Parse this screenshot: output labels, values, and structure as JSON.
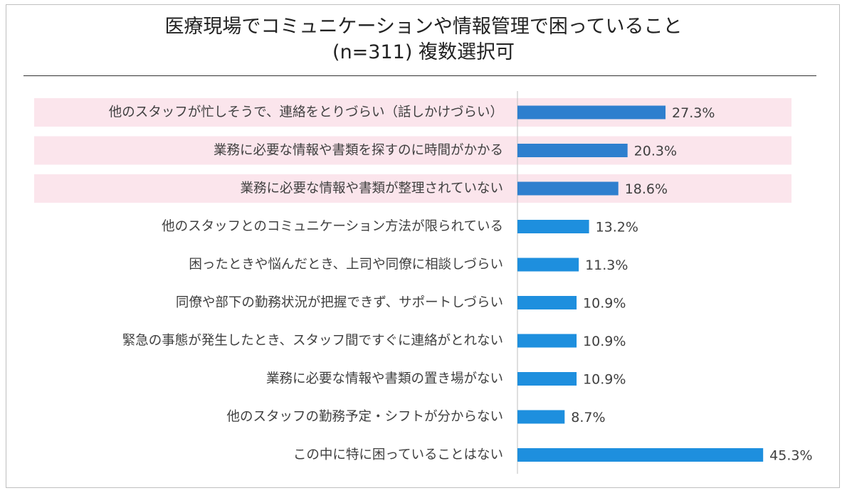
{
  "title": {
    "line1": "医療現場でコミュニケーションや情報管理で困っていること",
    "line2": "(n=311) 複数選択可"
  },
  "colors": {
    "highlight_bar": "#2e7fce",
    "bar": "#1e8fde",
    "highlight_band": "#fbe5ec",
    "axis": "#bfbfbf"
  },
  "chart_data": {
    "type": "bar",
    "orientation": "horizontal",
    "title": "医療現場でコミュニケーションや情報管理で困っていること (n=311) 複数選択可",
    "xlabel": "",
    "ylabel": "",
    "unit": "%",
    "xlim": [
      0,
      50
    ],
    "grid": false,
    "categories": [
      "他のスタッフが忙しそうで、連絡をとりづらい（話しかけづらい）",
      "業務に必要な情報や書類を探すのに時間がかかる",
      "業務に必要な情報や書類が整理されていない",
      "他のスタッフとのコミュニケーション方法が限られている",
      "困ったときや悩んだとき、上司や同僚に相談しづらい",
      "同僚や部下の勤務状況が把握できず、サポートしづらい",
      "緊急の事態が発生したとき、スタッフ間ですぐに連絡がとれない",
      "業務に必要な情報や書類の置き場がない",
      "他のスタッフの勤務予定・シフトが分からない",
      "この中に特に困っていることはない"
    ],
    "values": [
      27.3,
      20.3,
      18.6,
      13.2,
      11.3,
      10.9,
      10.9,
      10.9,
      8.7,
      45.3
    ],
    "value_labels": [
      "27.3%",
      "20.3%",
      "18.6%",
      "13.2%",
      "11.3%",
      "10.9%",
      "10.9%",
      "10.9%",
      "8.7%",
      "45.3%"
    ],
    "highlighted": [
      true,
      true,
      true,
      false,
      false,
      false,
      false,
      false,
      false,
      false
    ]
  }
}
